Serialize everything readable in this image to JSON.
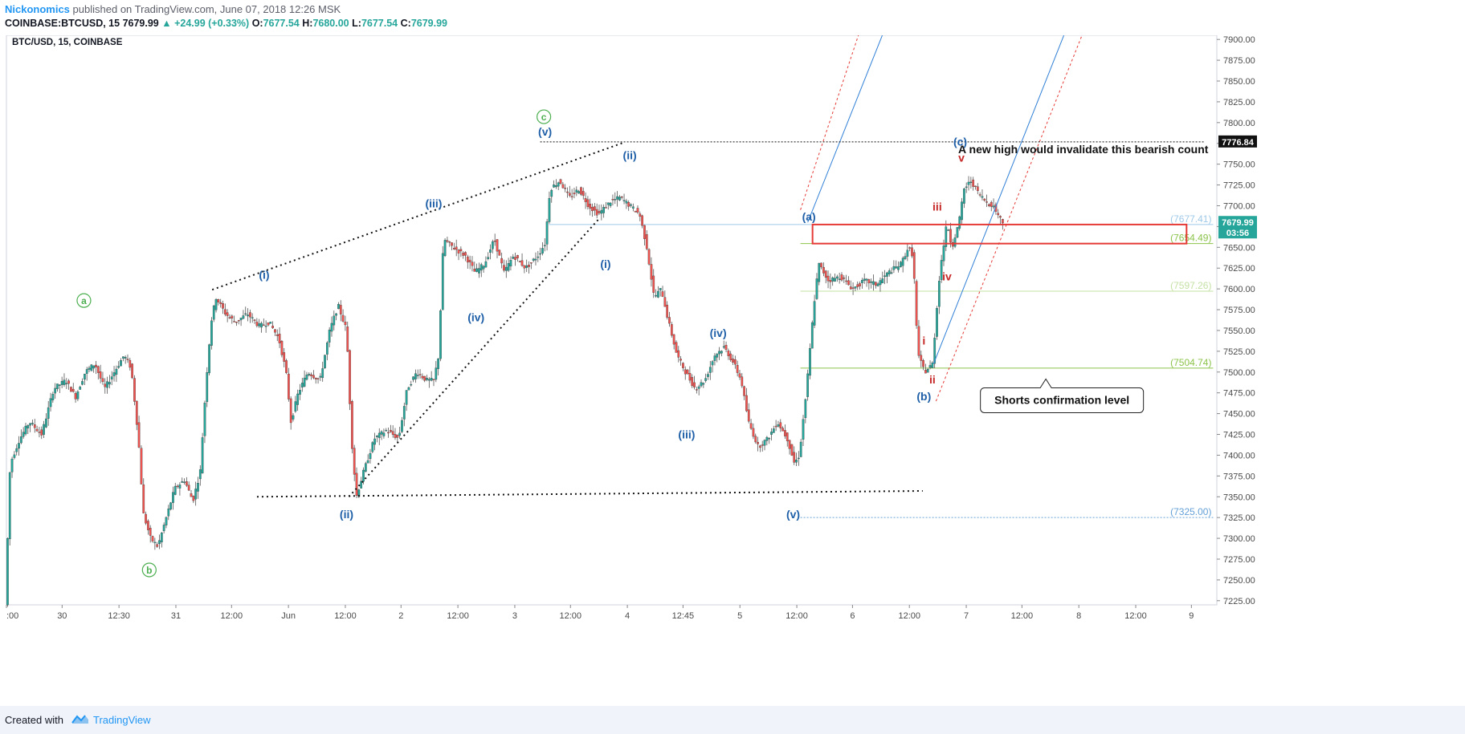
{
  "header": {
    "author": "Nickonomics",
    "published": "published on TradingView.com, June 07, 2018 12:26 MSK",
    "symbol": "COINBASE:BTCUSD, 15",
    "last": "7679.99",
    "change": "▲ +24.99 (+0.33%)",
    "o_label": "O:",
    "o": "7677.54",
    "h_label": "H:",
    "h": "7680.00",
    "l_label": "L:",
    "l": "7677.54",
    "c_label": "C:",
    "c": "7679.99"
  },
  "footer": {
    "created_with": "Created with",
    "brand": "TradingView"
  },
  "colors": {
    "up": "#26a69a",
    "down": "#ef5350",
    "wave_blue": "#1f5fa8",
    "wave_green": "#4caf50",
    "wave_red": "#c62828",
    "box_red": "#e53935"
  },
  "chart_data": {
    "type": "candlestick",
    "title": "BTC/USD, 15, COINBASE",
    "y_ticks": [
      7225,
      7250,
      7275,
      7300,
      7325,
      7350,
      7375,
      7400,
      7425,
      7450,
      7475,
      7500,
      7525,
      7550,
      7575,
      7600,
      7625,
      7650,
      7675,
      7700,
      7725,
      7750,
      7775,
      7800,
      7825,
      7850,
      7875,
      7900
    ],
    "ylim": [
      7220,
      7905
    ],
    "y_tick_labels": [
      "7225.00",
      "7250.00",
      "7275.00",
      "7300.00",
      "7325.00",
      "7350.00",
      "7375.00",
      "7400.00",
      "7425.00",
      "7450.00",
      "7475.00",
      "7500.00",
      "7525.00",
      "7550.00",
      "7575.00",
      "7600.00",
      "7625.00",
      "7650.00",
      "7675.00",
      "7700.00",
      "7725.00",
      "7750.00",
      "7775.00",
      "7800.00",
      "7825.00",
      "7850.00",
      "7875.00",
      "7900.00"
    ],
    "x_ticks": [
      ":00",
      "30",
      "12:30",
      "31",
      "12:00",
      "Jun",
      "12:00",
      "2",
      "12:00",
      "3",
      "12:00",
      "4",
      "12:45",
      "5",
      "12:00",
      "6",
      "12:00",
      "7",
      "12:00",
      "8",
      "12:00",
      "9"
    ],
    "x_tick_pos": [
      0.0,
      0.046,
      0.093,
      0.14,
      0.186,
      0.233,
      0.28,
      0.326,
      0.373,
      0.42,
      0.466,
      0.513,
      0.559,
      0.606,
      0.653,
      0.699,
      0.746,
      0.793,
      0.839,
      0.886,
      0.933,
      0.979
    ],
    "last_price_label": "7679.99",
    "last_time_label": "03:56",
    "high_label": "7776.84",
    "levels": [
      {
        "label": "(7677.41)",
        "value": 7677.41,
        "color": "#9ec9e8",
        "x0": 0.448
      },
      {
        "label": "(7654.49)",
        "value": 7654.49,
        "color": "#8bc34a",
        "x0": 0.656
      },
      {
        "label": "(7597.26)",
        "value": 7597.26,
        "color": "#c5e1a5",
        "x0": 0.656
      },
      {
        "label": "(7504.74)",
        "value": 7504.74,
        "color": "#8bc34a",
        "x0": 0.656
      },
      {
        "label": "(7325.00)",
        "value": 7325.0,
        "color": "#64a0d8",
        "x0": 0.656
      }
    ],
    "price_path": [
      [
        0.0,
        7220
      ],
      [
        0.004,
        7390
      ],
      [
        0.012,
        7420
      ],
      [
        0.02,
        7440
      ],
      [
        0.03,
        7425
      ],
      [
        0.04,
        7480
      ],
      [
        0.05,
        7490
      ],
      [
        0.058,
        7470
      ],
      [
        0.066,
        7500
      ],
      [
        0.074,
        7510
      ],
      [
        0.082,
        7480
      ],
      [
        0.09,
        7500
      ],
      [
        0.098,
        7520
      ],
      [
        0.104,
        7505
      ],
      [
        0.11,
        7420
      ],
      [
        0.114,
        7330
      ],
      [
        0.12,
        7300
      ],
      [
        0.126,
        7290
      ],
      [
        0.132,
        7320
      ],
      [
        0.14,
        7360
      ],
      [
        0.148,
        7370
      ],
      [
        0.155,
        7345
      ],
      [
        0.161,
        7380
      ],
      [
        0.166,
        7490
      ],
      [
        0.17,
        7560
      ],
      [
        0.174,
        7590
      ],
      [
        0.182,
        7570
      ],
      [
        0.19,
        7560
      ],
      [
        0.2,
        7570
      ],
      [
        0.21,
        7555
      ],
      [
        0.218,
        7560
      ],
      [
        0.226,
        7540
      ],
      [
        0.232,
        7500
      ],
      [
        0.236,
        7440
      ],
      [
        0.242,
        7475
      ],
      [
        0.25,
        7500
      ],
      [
        0.26,
        7490
      ],
      [
        0.268,
        7550
      ],
      [
        0.275,
        7580
      ],
      [
        0.282,
        7550
      ],
      [
        0.286,
        7420
      ],
      [
        0.29,
        7350
      ],
      [
        0.296,
        7380
      ],
      [
        0.305,
        7420
      ],
      [
        0.315,
        7430
      ],
      [
        0.325,
        7420
      ],
      [
        0.332,
        7480
      ],
      [
        0.34,
        7500
      ],
      [
        0.348,
        7490
      ],
      [
        0.354,
        7490
      ],
      [
        0.358,
        7520
      ],
      [
        0.362,
        7660
      ],
      [
        0.37,
        7650
      ],
      [
        0.38,
        7640
      ],
      [
        0.388,
        7620
      ],
      [
        0.396,
        7630
      ],
      [
        0.404,
        7660
      ],
      [
        0.412,
        7620
      ],
      [
        0.42,
        7640
      ],
      [
        0.43,
        7625
      ],
      [
        0.44,
        7640
      ],
      [
        0.446,
        7655
      ],
      [
        0.45,
        7720
      ],
      [
        0.458,
        7730
      ],
      [
        0.466,
        7710
      ],
      [
        0.474,
        7720
      ],
      [
        0.482,
        7700
      ],
      [
        0.49,
        7690
      ],
      [
        0.5,
        7705
      ],
      [
        0.508,
        7710
      ],
      [
        0.516,
        7700
      ],
      [
        0.524,
        7690
      ],
      [
        0.53,
        7650
      ],
      [
        0.536,
        7590
      ],
      [
        0.542,
        7600
      ],
      [
        0.548,
        7560
      ],
      [
        0.555,
        7520
      ],
      [
        0.562,
        7500
      ],
      [
        0.57,
        7480
      ],
      [
        0.578,
        7490
      ],
      [
        0.586,
        7520
      ],
      [
        0.594,
        7530
      ],
      [
        0.602,
        7510
      ],
      [
        0.608,
        7490
      ],
      [
        0.614,
        7440
      ],
      [
        0.622,
        7410
      ],
      [
        0.63,
        7420
      ],
      [
        0.638,
        7440
      ],
      [
        0.646,
        7420
      ],
      [
        0.652,
        7390
      ],
      [
        0.656,
        7400
      ],
      [
        0.662,
        7480
      ],
      [
        0.668,
        7580
      ],
      [
        0.672,
        7630
      ],
      [
        0.68,
        7610
      ],
      [
        0.69,
        7615
      ],
      [
        0.7,
        7600
      ],
      [
        0.71,
        7610
      ],
      [
        0.72,
        7605
      ],
      [
        0.73,
        7620
      ],
      [
        0.74,
        7630
      ],
      [
        0.746,
        7650
      ],
      [
        0.75,
        7640
      ],
      [
        0.754,
        7520
      ],
      [
        0.76,
        7500
      ],
      [
        0.766,
        7510
      ],
      [
        0.772,
        7620
      ],
      [
        0.778,
        7680
      ],
      [
        0.782,
        7650
      ],
      [
        0.788,
        7680
      ],
      [
        0.792,
        7720
      ],
      [
        0.798,
        7730
      ],
      [
        0.804,
        7715
      ],
      [
        0.81,
        7705
      ],
      [
        0.816,
        7700
      ],
      [
        0.82,
        7690
      ],
      [
        0.824,
        7680
      ]
    ],
    "trendlines": [
      {
        "name": "diagonal-top",
        "x0": 0.17,
        "y0": 7599,
        "x1": 0.51,
        "y1": 7776
      },
      {
        "name": "diagonal-bottom",
        "x0": 0.283,
        "y0": 7350,
        "x1": 0.49,
        "y1": 7685
      },
      {
        "name": "support",
        "x0": 0.207,
        "y0": 7350,
        "x1": 0.757,
        "y1": 7357
      },
      {
        "name": "high-line",
        "x0": 0.441,
        "y0": 7776.84,
        "x1": 0.99,
        "y1": 7776.84
      }
    ],
    "channels": [
      {
        "name": "channel-1-blue",
        "x0": 0.662,
        "y0": 7680,
        "x1": 0.725,
        "y1": 7910,
        "color": "#2f7fd6",
        "dash": false
      },
      {
        "name": "channel-1-red",
        "x0": 0.656,
        "y0": 7695,
        "x1": 0.705,
        "y1": 7910,
        "color": "#e53935",
        "dash": true
      },
      {
        "name": "channel-2-blue",
        "x0": 0.766,
        "y0": 7510,
        "x1": 0.875,
        "y1": 7910,
        "color": "#2f7fd6",
        "dash": false
      },
      {
        "name": "channel-2-red",
        "x0": 0.768,
        "y0": 7465,
        "x1": 0.89,
        "y1": 7910,
        "color": "#e53935",
        "dash": true
      }
    ],
    "box": {
      "x0": 0.666,
      "x1": 0.975,
      "y_top": 7677.41,
      "y_bottom": 7654.49
    },
    "wave_labels": [
      {
        "text": "a",
        "x": 0.064,
        "y": 7586,
        "color": "green",
        "circled": true
      },
      {
        "text": "b",
        "x": 0.118,
        "y": 7262,
        "color": "green",
        "circled": true
      },
      {
        "text": "c",
        "x": 0.444,
        "y": 7807,
        "color": "green",
        "circled": true
      },
      {
        "text": "(i)",
        "x": 0.213,
        "y": 7617,
        "color": "blue"
      },
      {
        "text": "(ii)",
        "x": 0.281,
        "y": 7329,
        "color": "blue"
      },
      {
        "text": "(iii)",
        "x": 0.353,
        "y": 7703,
        "color": "blue"
      },
      {
        "text": "(iv)",
        "x": 0.388,
        "y": 7566,
        "color": "blue"
      },
      {
        "text": "(v)",
        "x": 0.445,
        "y": 7789,
        "color": "blue"
      },
      {
        "text": "(i)",
        "x": 0.495,
        "y": 7630,
        "color": "blue"
      },
      {
        "text": "(ii)",
        "x": 0.515,
        "y": 7761,
        "color": "blue"
      },
      {
        "text": "(iii)",
        "x": 0.562,
        "y": 7425,
        "color": "blue"
      },
      {
        "text": "(iv)",
        "x": 0.588,
        "y": 7547,
        "color": "blue"
      },
      {
        "text": "(v)",
        "x": 0.65,
        "y": 7329,
        "color": "blue"
      },
      {
        "text": "(a)",
        "x": 0.663,
        "y": 7687,
        "color": "blue"
      },
      {
        "text": "(b)",
        "x": 0.758,
        "y": 7471,
        "color": "blue"
      },
      {
        "text": "(c)",
        "x": 0.788,
        "y": 7777,
        "color": "blue"
      },
      {
        "text": "i",
        "x": 0.758,
        "y": 7538,
        "color": "red"
      },
      {
        "text": "ii",
        "x": 0.765,
        "y": 7491,
        "color": "red"
      },
      {
        "text": "iii",
        "x": 0.769,
        "y": 7699,
        "color": "red"
      },
      {
        "text": "iv",
        "x": 0.777,
        "y": 7615,
        "color": "red"
      },
      {
        "text": "v",
        "x": 0.789,
        "y": 7758,
        "color": "red"
      }
    ],
    "annotations": {
      "invalidation_text": "A new high would invalidate this bearish count",
      "callout_text": "Shorts confirmation level"
    }
  }
}
